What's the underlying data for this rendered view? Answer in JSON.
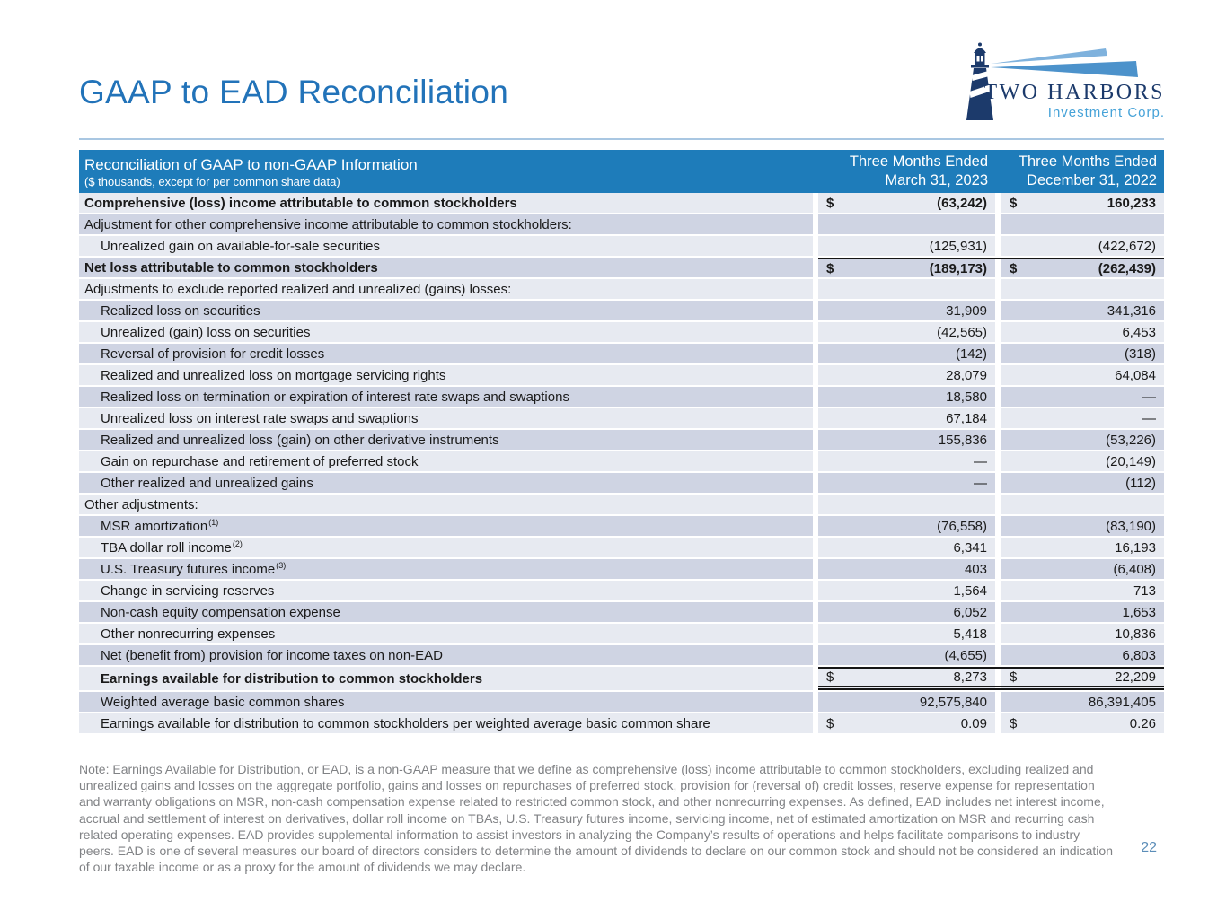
{
  "slide": {
    "title": "GAAP to EAD Reconciliation",
    "page_number": "22"
  },
  "logo": {
    "name": "TWO HARBORS",
    "subtitle": "Investment Corp.",
    "icon": "lighthouse-with-light-beams"
  },
  "colors": {
    "title_blue": "#2273B9",
    "header_blue": "#1E7CBA",
    "row_light": "#E7EAF1",
    "row_dark": "#CFD4E3",
    "brand_navy": "#1C3A6B",
    "brand_light_blue": "#45A2D8",
    "note_gray": "#808285",
    "page_number_blue": "#5B8DB8"
  },
  "table": {
    "header": {
      "title": "Reconciliation of GAAP to non-GAAP Information",
      "subtitle": "($ thousands, except for per common share data)",
      "col1_line1": "Three Months Ended",
      "col1_line2": "March 31, 2023",
      "col2_line1": "Three Months Ended",
      "col2_line2": "December 31, 2022"
    },
    "rows": [
      {
        "label": "Comprehensive (loss) income attributable to common stockholders",
        "indent": 0,
        "bold_label": true,
        "bold_values": true,
        "c1cur": "$",
        "c1": "(63,242)",
        "c2cur": "$",
        "c2": "160,233",
        "shade": "light"
      },
      {
        "label": "Adjustment for other comprehensive income attributable to common stockholders:",
        "indent": 0,
        "c1": "",
        "c2": "",
        "shade": "dark"
      },
      {
        "label": "Unrealized gain on available-for-sale securities",
        "indent": 1,
        "c1": "(125,931)",
        "c2": "(422,672)",
        "shade": "light"
      },
      {
        "label": "Net loss attributable to common stockholders",
        "indent": 0,
        "bold_label": true,
        "bold_values": true,
        "c1cur": "$",
        "c1": "(189,173)",
        "c2cur": "$",
        "c2": "(262,439)",
        "shade": "dark",
        "line_top": true
      },
      {
        "label": "Adjustments to exclude reported realized and unrealized (gains) losses:",
        "indent": 0,
        "c1": "",
        "c2": "",
        "shade": "light"
      },
      {
        "label": "Realized loss on securities",
        "indent": 1,
        "c1": "31,909",
        "c2": "341,316",
        "shade": "dark"
      },
      {
        "label": "Unrealized (gain) loss on securities",
        "indent": 1,
        "c1": "(42,565)",
        "c2": "6,453",
        "shade": "light"
      },
      {
        "label": "Reversal of provision for credit losses",
        "indent": 1,
        "c1": "(142)",
        "c2": "(318)",
        "shade": "dark"
      },
      {
        "label": "Realized and unrealized loss on mortgage servicing rights",
        "indent": 1,
        "c1": "28,079",
        "c2": "64,084",
        "shade": "light"
      },
      {
        "label": "Realized loss on termination or expiration of interest rate swaps and swaptions",
        "indent": 1,
        "c1": "18,580",
        "c2": "—",
        "shade": "dark"
      },
      {
        "label": "Unrealized loss on interest rate swaps and swaptions",
        "indent": 1,
        "c1": "67,184",
        "c2": "—",
        "shade": "light"
      },
      {
        "label": "Realized and unrealized loss (gain) on other derivative instruments",
        "indent": 1,
        "c1": "155,836",
        "c2": "(53,226)",
        "shade": "dark"
      },
      {
        "label": "Gain on repurchase and retirement of preferred stock",
        "indent": 1,
        "c1": "—",
        "c2": "(20,149)",
        "shade": "light"
      },
      {
        "label": "Other realized and unrealized gains",
        "indent": 1,
        "c1": "—",
        "c2": "(112)",
        "shade": "dark"
      },
      {
        "label": "Other adjustments:",
        "indent": 0,
        "c1": "",
        "c2": "",
        "shade": "light"
      },
      {
        "label": "MSR amortization",
        "sup": "(1)",
        "indent": 1,
        "c1": "(76,558)",
        "c2": "(83,190)",
        "shade": "dark"
      },
      {
        "label": "TBA dollar roll income",
        "sup": "(2)",
        "indent": 1,
        "c1": "6,341",
        "c2": "16,193",
        "shade": "light"
      },
      {
        "label": "U.S. Treasury futures income",
        "sup": "(3)",
        "indent": 1,
        "c1": "403",
        "c2": "(6,408)",
        "shade": "dark"
      },
      {
        "label": "Change in servicing reserves",
        "indent": 1,
        "c1": "1,564",
        "c2": "713",
        "shade": "light"
      },
      {
        "label": "Non-cash equity compensation expense",
        "indent": 1,
        "c1": "6,052",
        "c2": "1,653",
        "shade": "dark"
      },
      {
        "label": "Other nonrecurring expenses",
        "indent": 1,
        "c1": "5,418",
        "c2": "10,836",
        "shade": "light"
      },
      {
        "label": "Net (benefit from) provision for income taxes on non-EAD",
        "indent": 1,
        "c1": "(4,655)",
        "c2": "6,803",
        "shade": "dark"
      },
      {
        "label": "Earnings available for distribution to common stockholders",
        "indent": 1,
        "bold_label": true,
        "c1cur": "$",
        "c1": "8,273",
        "c2cur": "$",
        "c2": "22,209",
        "shade": "light",
        "line_top": true,
        "line_bottom_double": true
      },
      {
        "label": "Weighted average basic common shares",
        "indent": 1,
        "c1": "92,575,840",
        "c2": "86,391,405",
        "shade": "dark"
      },
      {
        "label": "Earnings available for distribution to common stockholders per weighted average basic common share",
        "indent": 1,
        "c1cur": "$",
        "c1": "0.09",
        "c2cur": "$",
        "c2": "0.26",
        "shade": "light"
      }
    ]
  },
  "note": {
    "text": "Note: Earnings Available for Distribution, or EAD, is a non-GAAP measure that we define as comprehensive (loss) income attributable to common stockholders, excluding realized and unrealized gains and losses on the aggregate portfolio, gains and losses on repurchases of preferred stock, provision for (reversal of) credit losses, reserve expense for representation and warranty obligations on MSR, non-cash compensation expense related to restricted common stock, and other nonrecurring expenses. As defined, EAD includes net interest income, accrual and settlement of interest on derivatives, dollar roll income on TBAs, U.S. Treasury futures income, servicing income, net of estimated amortization on MSR and recurring cash related operating expenses. EAD provides supplemental information to assist investors in analyzing the Company’s results of operations and helps facilitate comparisons to industry peers. EAD is one of several measures our board of directors considers to determine the amount of dividends to declare on our common stock and should not be considered an indication of our taxable income or as a proxy for the amount of dividends we may declare."
  }
}
